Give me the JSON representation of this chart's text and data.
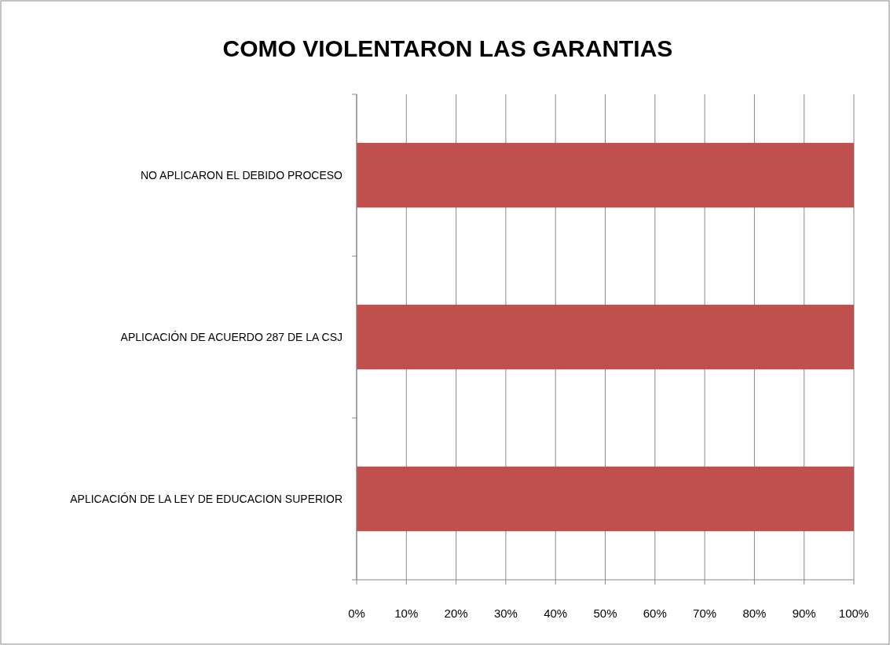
{
  "chart_data": {
    "type": "bar",
    "orientation": "horizontal",
    "title": "COMO VIOLENTARON LAS GARANTIAS",
    "categories": [
      "NO APLICARON EL DEBIDO PROCESO",
      "APLICACIÓN DE ACUERDO 287 DE LA CSJ",
      "APLICACIÓN DE LA LEY DE EDUCACION SUPERIOR"
    ],
    "values": [
      100,
      100,
      100
    ],
    "color": "#c0504d",
    "xlim": [
      0,
      100
    ],
    "xticks": [
      {
        "value": 0,
        "label": "0%"
      },
      {
        "value": 10,
        "label": "10%"
      },
      {
        "value": 20,
        "label": "20%"
      },
      {
        "value": 30,
        "label": "30%"
      },
      {
        "value": 40,
        "label": "40%"
      },
      {
        "value": 50,
        "label": "50%"
      },
      {
        "value": 60,
        "label": "60%"
      },
      {
        "value": 70,
        "label": "70%"
      },
      {
        "value": 80,
        "label": "80%"
      },
      {
        "value": 90,
        "label": "90%"
      },
      {
        "value": 100,
        "label": "100%"
      }
    ],
    "grid": "x"
  }
}
